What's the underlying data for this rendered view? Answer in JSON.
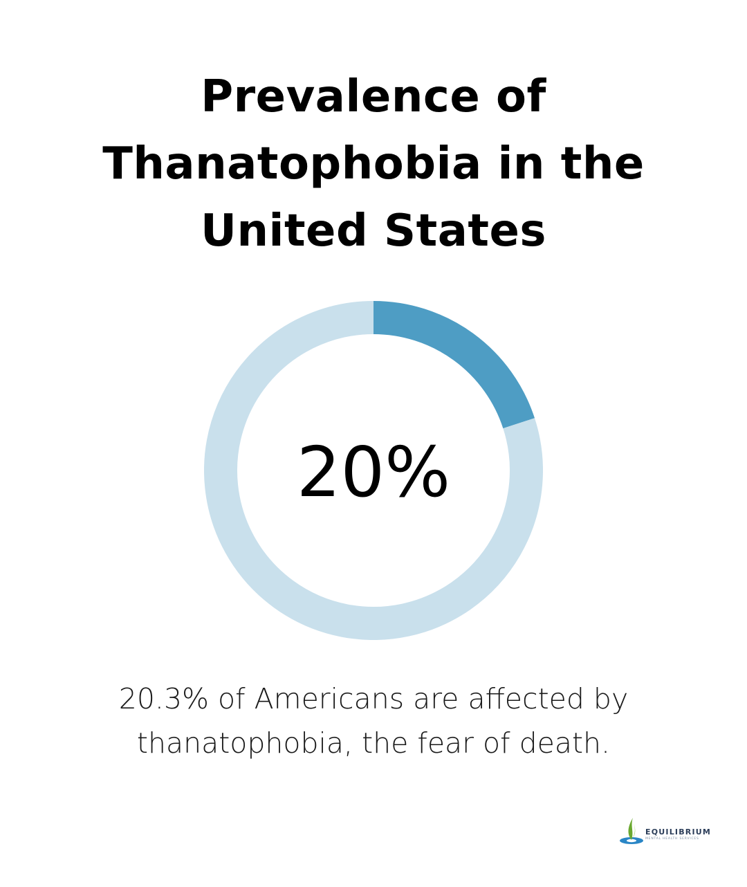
{
  "title": "Prevalence of Thanatophobia in the United States",
  "caption": "20.3% of Americans are affected by thanatophobia, the fear of death.",
  "logo": {
    "name": "EQUILIBRIUM",
    "tagline": "MENTAL HEALTH SERVICES"
  },
  "colors": {
    "highlight": "#4e9dc4",
    "track": "#c9e0ec",
    "text": "#000000"
  },
  "chart_data": {
    "type": "pie",
    "variant": "donut",
    "center_label": "20%",
    "values": [
      20,
      80
    ],
    "title": "Prevalence of Thanatophobia in the United States"
  }
}
